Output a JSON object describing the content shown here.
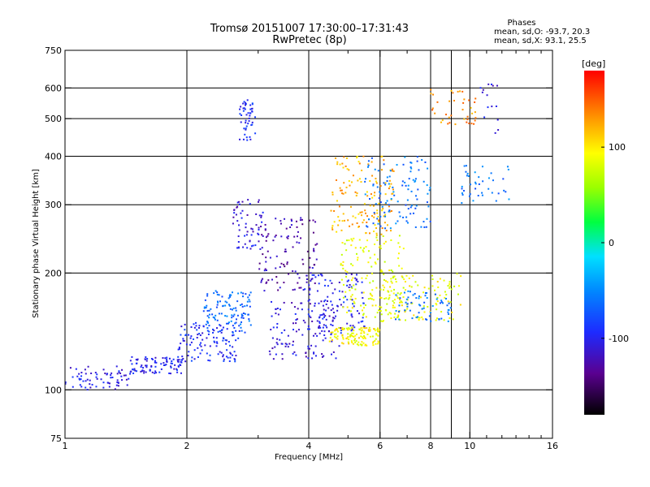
{
  "chart_data": {
    "type": "scatter",
    "title": "Tromsø 20151007 17:30:00–17:31:43",
    "subtitle": "RwPretec (8p)",
    "xlabel": "Frequency [MHz]",
    "ylabel": "Stationary phase Virtual Height [km]",
    "x_scale": "log",
    "y_scale": "log",
    "xlim": [
      1,
      16
    ],
    "ylim": [
      75,
      750
    ],
    "x_ticks": [
      1,
      2,
      4,
      6,
      8,
      10,
      16
    ],
    "x_tick_labels": [
      "1",
      "2",
      "4",
      "6",
      "8",
      "10",
      "16"
    ],
    "x_grid": [
      2,
      4,
      6,
      8,
      9,
      10
    ],
    "x_minor_ticks": [
      3,
      5,
      7,
      9,
      11,
      12,
      13,
      14,
      15
    ],
    "y_ticks": [
      75,
      100,
      200,
      300,
      400,
      500,
      600,
      750
    ],
    "y_tick_labels": [
      "75",
      "100",
      "200",
      "300",
      "400",
      "500",
      "600",
      "750"
    ],
    "y_grid": [
      100,
      200,
      300,
      400,
      500,
      600
    ],
    "grid": true,
    "phases": {
      "heading": "Phases",
      "line_o": "mean, sd,O: -93.7, 20.3",
      "line_x": "mean, sd,X:  93.1, 25.5"
    },
    "colorbar": {
      "label": "[deg]",
      "range": [
        -180,
        180
      ],
      "ticks": [
        100,
        0,
        -100
      ],
      "tick_labels": [
        "100",
        "0",
        "-100"
      ]
    },
    "point_clusters": [
      {
        "f": [
          1.0,
          1.45
        ],
        "h": [
          100,
          115
        ],
        "phase": -105,
        "n": 70
      },
      {
        "f": [
          1.45,
          1.95
        ],
        "h": [
          110,
          122
        ],
        "phase": -100,
        "n": 90
      },
      {
        "f": [
          1.9,
          2.7
        ],
        "h": [
          118,
          150
        ],
        "phase": -95,
        "n": 120
      },
      {
        "f": [
          2.2,
          2.9
        ],
        "h": [
          140,
          180
        ],
        "phase": -65,
        "n": 110
      },
      {
        "f": [
          2.6,
          3.1
        ],
        "h": [
          230,
          310
        ],
        "phase": -110,
        "n": 60
      },
      {
        "f": [
          2.7,
          2.95
        ],
        "h": [
          440,
          560
        ],
        "phase": -95,
        "n": 50
      },
      {
        "f": [
          3.0,
          4.2
        ],
        "h": [
          180,
          280
        ],
        "phase": -125,
        "n": 110
      },
      {
        "f": [
          3.2,
          4.8
        ],
        "h": [
          120,
          170
        ],
        "phase": -110,
        "n": 130
      },
      {
        "f": [
          3.9,
          5.5
        ],
        "h": [
          140,
          200
        ],
        "phase": -100,
        "n": 100
      },
      {
        "f": [
          4.5,
          6.0
        ],
        "h": [
          130,
          145
        ],
        "phase": 95,
        "n": 120
      },
      {
        "f": [
          4.8,
          7.0
        ],
        "h": [
          150,
          250
        ],
        "phase": 85,
        "n": 150
      },
      {
        "f": [
          4.5,
          6.5
        ],
        "h": [
          250,
          400
        ],
        "phase": 120,
        "n": 140
      },
      {
        "f": [
          5.5,
          8.0
        ],
        "h": [
          260,
          400
        ],
        "phase": -60,
        "n": 110
      },
      {
        "f": [
          6.0,
          9.5
        ],
        "h": [
          150,
          200
        ],
        "phase": 90,
        "n": 110
      },
      {
        "f": [
          6.5,
          9.0
        ],
        "h": [
          150,
          180
        ],
        "phase": -60,
        "n": 60
      },
      {
        "f": [
          8.0,
          10.5
        ],
        "h": [
          480,
          600
        ],
        "phase": 135,
        "n": 40
      },
      {
        "f": [
          9.5,
          12.5
        ],
        "h": [
          300,
          380
        ],
        "phase": -60,
        "n": 40
      },
      {
        "f": [
          10.5,
          12.0
        ],
        "h": [
          450,
          620
        ],
        "phase": -110,
        "n": 15
      }
    ]
  }
}
